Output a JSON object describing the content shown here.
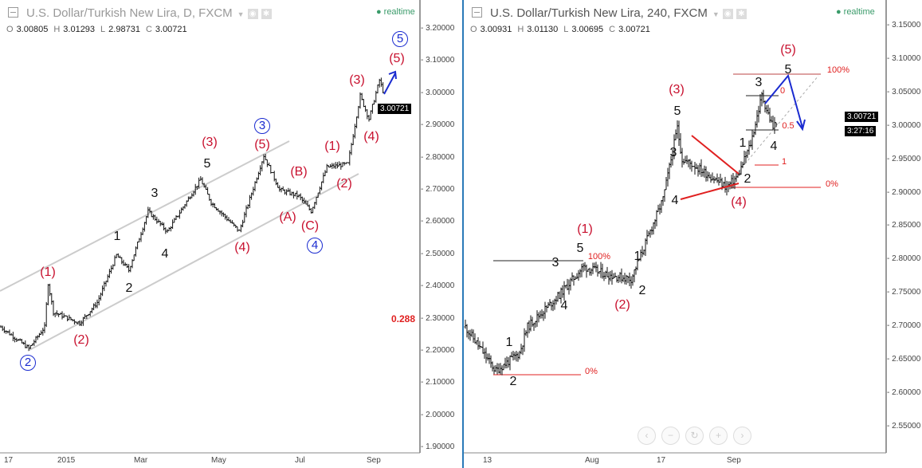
{
  "left": {
    "title": "U.S. Dollar/Turkish New Lira, D, FXCM",
    "realtime": "realtime",
    "ohlc": {
      "o_label": "O",
      "o": "3.00805",
      "h_label": "H",
      "h": "3.01293",
      "l_label": "L",
      "l": "2.98731",
      "c_label": "C",
      "c": "3.00721"
    },
    "price_ticks": [
      "3.20000",
      "3.10000",
      "3.00000",
      "2.90000",
      "2.80000",
      "2.70000",
      "2.60000",
      "2.50000",
      "2.40000",
      "2.30000",
      "2.20000",
      "2.10000",
      "2.00000",
      "1.90000"
    ],
    "time_ticks": [
      "17",
      "2015",
      "Mar",
      "May",
      "Jul",
      "Sep"
    ],
    "last_price": "3.00721",
    "fib_label": "0.288",
    "labels": [
      "(1)",
      "(2)",
      "1",
      "2",
      "3",
      "4",
      "5",
      "(3)",
      "(4)",
      "(5)",
      "3",
      "(A)",
      "(B)",
      "(C)",
      "4",
      "(1)",
      "(2)",
      "(3)",
      "(4)",
      "(5)",
      "5",
      "2"
    ]
  },
  "right": {
    "title": "U.S. Dollar/Turkish New Lira, 240, FXCM",
    "realtime": "realtime",
    "ohlc": {
      "o_label": "O",
      "o": "3.00931",
      "h_label": "H",
      "h": "3.01130",
      "l_label": "L",
      "l": "3.00695",
      "c_label": "C",
      "c": "3.00721"
    },
    "price_ticks": [
      "3.15000",
      "3.10000",
      "3.05000",
      "3.00000",
      "2.95000",
      "2.90000",
      "2.85000",
      "2.80000",
      "2.75000",
      "2.70000",
      "2.65000",
      "2.60000",
      "2.55000"
    ],
    "time_ticks": [
      "13",
      "Aug",
      "17",
      "Sep"
    ],
    "last_price": "3.00721",
    "countdown": "3:27:16",
    "labels": [
      "(1)",
      "5",
      "3",
      "4",
      "100%",
      "1",
      "2",
      "(2)",
      "1",
      "2",
      "0%",
      "(3)",
      "5",
      "3",
      "4",
      "1",
      "2",
      "(4)",
      "3",
      "4",
      "5",
      "(5)",
      "100%",
      "0.5",
      "1",
      "0%",
      "0"
    ],
    "nav_buttons": [
      "‹",
      "−",
      "↻",
      "+",
      "›"
    ]
  },
  "colors": {
    "wave_red": "#c8102e",
    "wave_blue": "#1a2bd0",
    "fib_red": "#e02020"
  },
  "chart_data": [
    {
      "type": "ohlc",
      "symbol": "USDTRY",
      "timeframe": "D",
      "ylim": [
        1.9,
        3.2
      ],
      "path": [
        [
          0,
          2.274
        ],
        [
          16,
          2.207
        ],
        [
          25,
          2.274
        ],
        [
          27,
          2.41
        ],
        [
          30,
          2.32
        ],
        [
          45,
          2.286
        ],
        [
          55,
          2.35
        ],
        [
          66,
          2.497
        ],
        [
          73,
          2.45
        ],
        [
          84,
          2.633
        ],
        [
          95,
          2.57
        ],
        [
          114,
          2.732
        ],
        [
          120,
          2.66
        ],
        [
          136,
          2.571
        ],
        [
          150,
          2.806
        ],
        [
          159,
          2.7
        ],
        [
          170,
          2.68
        ],
        [
          177,
          2.633
        ],
        [
          186,
          2.77
        ],
        [
          198,
          2.78
        ],
        [
          205,
          2.992
        ],
        [
          210,
          2.92
        ],
        [
          216,
          3.04
        ],
        [
          218,
          3.007
        ]
      ]
    },
    {
      "type": "ohlc",
      "symbol": "USDTRY",
      "timeframe": "240",
      "ylim": [
        2.52,
        3.16
      ],
      "path": [
        [
          0,
          2.699
        ],
        [
          19,
          2.633
        ],
        [
          34,
          2.66
        ],
        [
          39,
          2.699
        ],
        [
          59,
          2.747
        ],
        [
          74,
          2.789
        ],
        [
          89,
          2.777
        ],
        [
          104,
          2.771
        ],
        [
          109,
          2.8
        ],
        [
          124,
          2.89
        ],
        [
          133,
          2.997
        ],
        [
          136,
          2.95
        ],
        [
          144,
          2.94
        ],
        [
          164,
          2.908
        ],
        [
          171,
          2.925
        ],
        [
          179,
          2.973
        ],
        [
          186,
          3.045
        ],
        [
          193,
          2.997
        ],
        [
          195,
          3.007
        ]
      ]
    }
  ]
}
